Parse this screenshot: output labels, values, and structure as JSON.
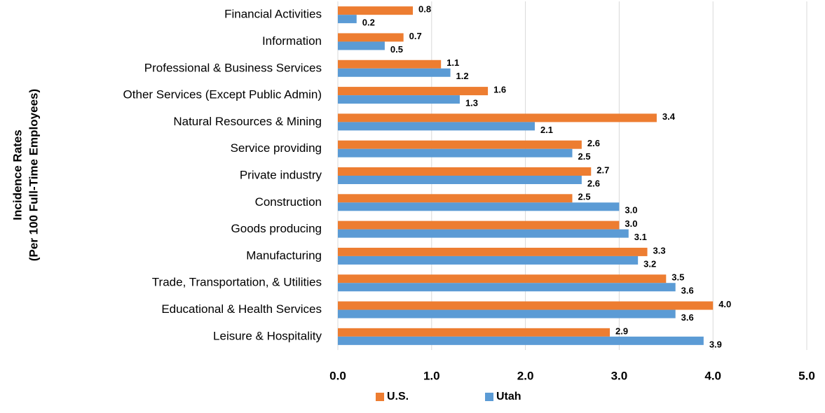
{
  "chart_data": {
    "type": "bar",
    "orientation": "horizontal",
    "ylabel": [
      "Incidence Rates",
      "(Per 100 Full-Time Employees)"
    ],
    "categories": [
      "Financial Activities",
      "Information",
      "Professional & Business Services",
      "Other Services (Except Public Admin)",
      "Natural Resources & Mining",
      "Service providing",
      "Private industry",
      "Construction",
      "Goods producing",
      "Manufacturing",
      "Trade, Transportation, & Utilities",
      "Educational & Health Services",
      "Leisure & Hospitality"
    ],
    "series": [
      {
        "name": "U.S.",
        "color": "#ED7D31",
        "values": [
          0.8,
          0.7,
          1.1,
          1.6,
          3.4,
          2.6,
          2.7,
          2.5,
          3.0,
          3.3,
          3.5,
          4.0,
          2.9
        ],
        "value_labels": [
          "0.8",
          "0.7",
          "1.1",
          "1.6",
          "3.4",
          "2.6",
          "2.7",
          "2.5",
          "3.0",
          "3.3",
          "3.5",
          "4.0",
          "2.9"
        ]
      },
      {
        "name": "Utah",
        "color": "#5B9BD5",
        "values": [
          0.2,
          0.5,
          1.2,
          1.3,
          2.1,
          2.5,
          2.6,
          3.0,
          3.1,
          3.2,
          3.6,
          3.6,
          3.9
        ],
        "value_labels": [
          "0.2",
          "0.5",
          "1.2",
          "1.3",
          "2.1",
          "2.5",
          "2.6",
          "3.0",
          "3.1",
          "3.2",
          "3.6",
          "3.6",
          "3.9"
        ]
      }
    ],
    "xlim": [
      0,
      5
    ],
    "xticks": [
      {
        "value": 0,
        "label": "0.0"
      },
      {
        "value": 1,
        "label": "1.0"
      },
      {
        "value": 2,
        "label": "2.0"
      },
      {
        "value": 3,
        "label": "3.0"
      },
      {
        "value": 4,
        "label": "4.0"
      },
      {
        "value": 5,
        "label": "5.0"
      }
    ],
    "grid": true,
    "legend": "bottom"
  }
}
